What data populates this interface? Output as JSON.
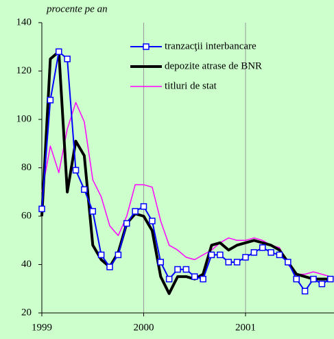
{
  "chart_data": {
    "type": "line",
    "subtitle": "procente pe an",
    "categories": [
      "1999",
      null,
      null,
      null,
      null,
      null,
      null,
      null,
      null,
      null,
      null,
      null,
      "2000",
      null,
      null,
      null,
      null,
      null,
      null,
      null,
      null,
      null,
      null,
      null,
      "2001",
      null,
      null,
      null,
      null,
      null,
      null,
      null,
      null,
      null,
      null
    ],
    "series": [
      {
        "name": "tranzacţii interbancare",
        "color": "#0000ff",
        "marker": "square",
        "values": [
          63,
          108,
          128,
          125,
          79,
          71,
          62,
          44,
          39,
          44,
          57,
          62,
          64,
          58,
          41,
          34,
          38,
          38,
          35,
          34,
          44,
          44,
          41,
          41,
          43,
          45,
          47,
          45,
          44,
          41,
          34,
          29,
          34,
          32,
          34
        ]
      },
      {
        "name": "depozite atrase de BNR",
        "color": "#000000",
        "values": [
          60,
          125,
          128,
          70,
          91,
          85,
          48,
          42,
          39,
          45,
          57,
          61,
          60,
          54,
          35,
          28,
          35,
          35,
          34,
          36,
          48,
          49,
          46,
          48,
          49,
          50,
          49,
          48,
          46,
          41,
          36,
          35,
          34,
          34,
          34
        ]
      },
      {
        "name": "titluri de stat",
        "color": "#ff00ff",
        "values": [
          70,
          89,
          78,
          96,
          107,
          99,
          75,
          68,
          56,
          52,
          60,
          73,
          73,
          72,
          58,
          48,
          46,
          43,
          42,
          44,
          46,
          49,
          51,
          50,
          50,
          51,
          50,
          48,
          47,
          40,
          36,
          36,
          37,
          36,
          35
        ]
      }
    ],
    "ylim": [
      20,
      140
    ],
    "yticks": [
      20,
      40,
      60,
      80,
      100,
      120,
      140
    ],
    "xgrid": true,
    "legend": "top"
  }
}
